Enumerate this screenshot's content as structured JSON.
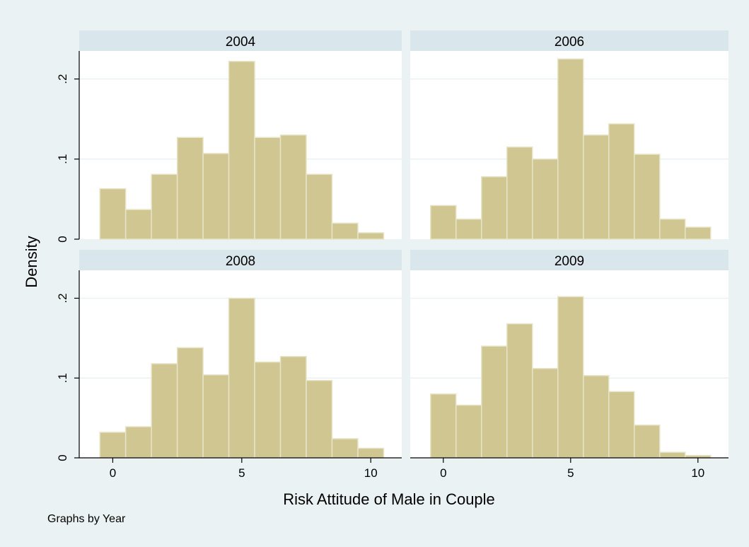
{
  "chart_data": {
    "type": "bar",
    "subtype": "histogram-by-panel",
    "ylabel": "Density",
    "xlabel": "Risk Attitude of Male in Couple",
    "note": "Graphs by Year",
    "bins": [
      0,
      1,
      2,
      3,
      4,
      5,
      6,
      7,
      8,
      9,
      10
    ],
    "x_ticks": [
      0,
      5,
      10
    ],
    "y_ticks": [
      {
        "value": 0,
        "label": "0"
      },
      {
        "value": 0.1,
        "label": ".1"
      },
      {
        "value": 0.2,
        "label": ".2"
      }
    ],
    "xlim": [
      -1.3,
      11.2
    ],
    "ylim": [
      0,
      0.235
    ],
    "grid": true,
    "panels": [
      {
        "title": "2004",
        "values": [
          0.063,
          0.037,
          0.081,
          0.127,
          0.107,
          0.222,
          0.127,
          0.13,
          0.081,
          0.02,
          0.008
        ]
      },
      {
        "title": "2006",
        "values": [
          0.042,
          0.025,
          0.078,
          0.115,
          0.1,
          0.225,
          0.13,
          0.144,
          0.106,
          0.025,
          0.015
        ]
      },
      {
        "title": "2008",
        "values": [
          0.032,
          0.039,
          0.118,
          0.138,
          0.104,
          0.2,
          0.12,
          0.127,
          0.097,
          0.024,
          0.012
        ]
      },
      {
        "title": "2009",
        "values": [
          0.08,
          0.066,
          0.14,
          0.168,
          0.112,
          0.202,
          0.103,
          0.083,
          0.041,
          0.007,
          0.003
        ]
      }
    ],
    "colors": {
      "background": "#eaf2f3",
      "plot": "#ffffff",
      "strip": "#d9e6eb",
      "bar": "#cfc691",
      "bar_edge": "#e8e4c8",
      "grid": "#eaf2f3",
      "axis": "#000000",
      "text": "#000000"
    }
  }
}
